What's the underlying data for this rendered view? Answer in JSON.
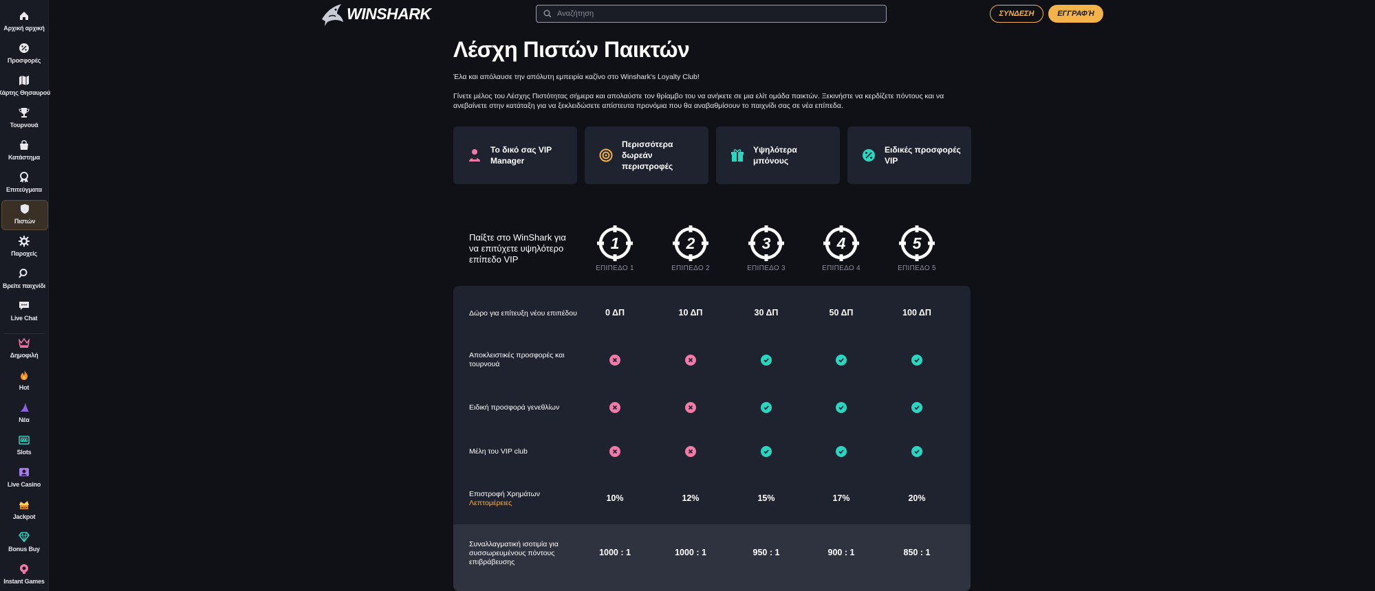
{
  "sidebar": {
    "items": [
      {
        "label": "Αρχική αρχική",
        "icon": "home-icon"
      },
      {
        "label": "Προσφορές",
        "icon": "percent-icon"
      },
      {
        "label": "Χάρτης Θησαυρού",
        "icon": "map-icon"
      },
      {
        "label": "Τουρνουά",
        "icon": "trophy-icon"
      },
      {
        "label": "Κατάστημα",
        "icon": "shop-bag-icon"
      },
      {
        "label": "Επιτεύγματα",
        "icon": "achievement-icon"
      },
      {
        "label": "Πιστών",
        "icon": "loyalty-shield-icon",
        "active": true
      },
      {
        "label": "Παροχείς",
        "icon": "providers-gear-icon"
      },
      {
        "label": "Βρείτε παιχνίδι",
        "icon": "search-icon"
      },
      {
        "label": "Live Chat",
        "icon": "chat-icon"
      },
      {
        "label": "Δημοφιλή",
        "icon": "crown-icon"
      },
      {
        "label": "Hot",
        "icon": "fire-icon"
      },
      {
        "label": "Νέα",
        "icon": "shark-fin-icon"
      },
      {
        "label": "Slots",
        "icon": "slots-icon"
      },
      {
        "label": "Live Casino",
        "icon": "live-casino-icon"
      },
      {
        "label": "Jackpot",
        "icon": "jackpot-icon"
      },
      {
        "label": "Bonus Buy",
        "icon": "diamond-icon"
      },
      {
        "label": "Instant Games",
        "icon": "instant-games-icon"
      }
    ]
  },
  "header": {
    "logo_text": "WINSHARK",
    "search_placeholder": "Αναζήτηση",
    "login_label": "ΣΥΝΔΕΣΗ",
    "register_label": "ΕΓΓΡΑΦΉ"
  },
  "main": {
    "title": "Λέσχη Πιστών Παικτών",
    "intro1": "Έλα και απόλαυσε την απόλυτη εμπειρία καζίνο στο Winshark's Loyalty Club!",
    "intro2": "Γίνετε μέλος του Λέσχης Πιστότητας σήμερα και απολαύστε τον θρίαμβο του να ανήκετε σε μια ελίτ ομάδα παικτών. Ξεκινήστε να κερδίζετε πόντους και να ανεβαίνετε στην κατάταξη για να ξεκλειδώσετε απίστευτα προνόμια που θα αναβαθμίσουν το παιχνίδι σας σε νέα επίπεδα.",
    "perks": [
      {
        "label": "Το δικό σας VIP Manager",
        "icon": "vip-manager-icon",
        "color": "#f07aa8"
      },
      {
        "label": "Περισσότερα δωρεάν περιστροφές",
        "icon": "free-spins-icon",
        "color": "#f4b24a"
      },
      {
        "label": "Υψηλότερα μπόνους",
        "icon": "gift-icon",
        "color": "#2ad6c0"
      },
      {
        "label": "Ειδικές προσφορές VIP",
        "icon": "special-offer-icon",
        "color": "#2ad6c0"
      }
    ],
    "vip_intro": "Παίξτε στο WinShark για να επιτύχετε υψηλότερο επίπεδο VIP",
    "levels": [
      {
        "number": "1",
        "label": "ΕΠΙΠΕΔΟ 1"
      },
      {
        "number": "2",
        "label": "ΕΠΙΠΕΔΟ 2"
      },
      {
        "number": "3",
        "label": "ΕΠΙΠΕΔΟ 3"
      },
      {
        "number": "4",
        "label": "ΕΠΙΠΕΔΟ 4"
      },
      {
        "number": "5",
        "label": "ΕΠΙΠΕΔΟ 5"
      }
    ],
    "table": {
      "rows": [
        {
          "label": "Δώρο για επίτευξη νέου επιπέδου",
          "type": "text",
          "values": [
            "0 ΔΠ",
            "10 ΔΠ",
            "30 ΔΠ",
            "50 ΔΠ",
            "100 ΔΠ"
          ]
        },
        {
          "label": "Αποκλειστικές προσφορές και τουρνουά",
          "type": "bool",
          "values": [
            false,
            false,
            true,
            true,
            true
          ]
        },
        {
          "label": "Ειδική προσφορά γενεθλίων",
          "type": "bool",
          "values": [
            false,
            false,
            true,
            true,
            true
          ]
        },
        {
          "label": "Μέλη του VIP club",
          "type": "bool",
          "values": [
            false,
            false,
            true,
            true,
            true
          ]
        },
        {
          "label": "Επιστροφή Χρημάτων",
          "link": "Λεπτομέρειες",
          "type": "text",
          "values": [
            "10%",
            "12%",
            "15%",
            "17%",
            "20%"
          ]
        },
        {
          "label": "Συναλλαγματική ισοτιμία για συσσωρευμένους πόντους επιβράβευσης",
          "type": "text",
          "values": [
            "1000 : 1",
            "1000 : 1",
            "950 : 1",
            "900 : 1",
            "850 : 1"
          ]
        }
      ]
    },
    "colors": {
      "accent": "#f4b24a",
      "yes": "#2ad6c0",
      "no": "#f07aa8"
    }
  }
}
